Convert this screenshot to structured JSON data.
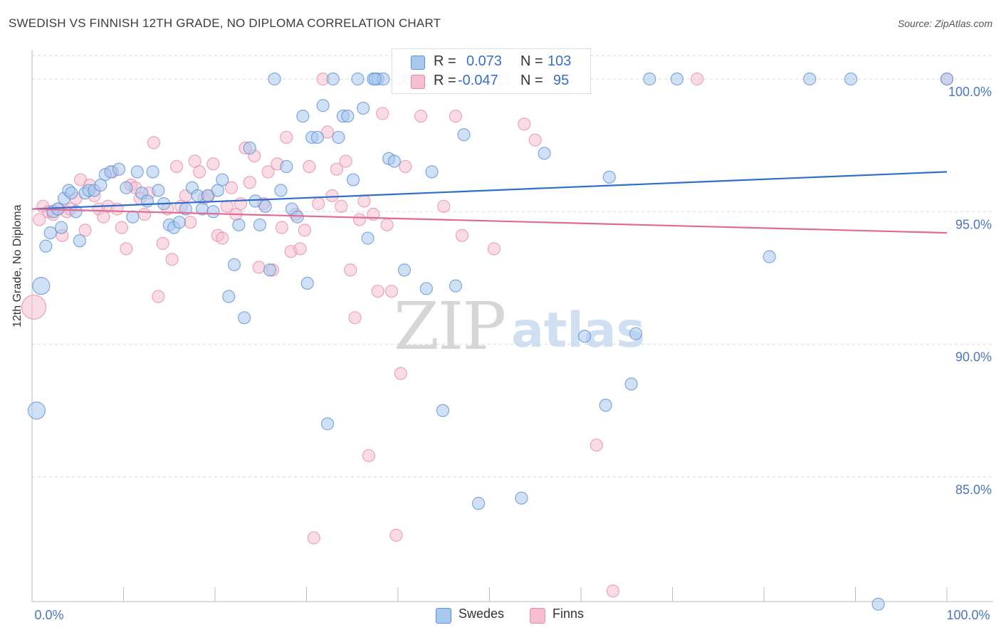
{
  "header": {
    "title": "SWEDISH VS FINNISH 12TH GRADE, NO DIPLOMA CORRELATION CHART",
    "source": "Source: ZipAtlas.com"
  },
  "watermark": {
    "zip": "ZIP",
    "atlas": "atlas"
  },
  "legend": {
    "r_label": "R =",
    "n_label": "N =",
    "swedes": {
      "r": "0.073",
      "n": "103"
    },
    "finns": {
      "r": "-0.047",
      "n": "95"
    }
  },
  "bottom_legend": {
    "swedes": "Swedes",
    "finns": "Finns"
  },
  "colors": {
    "swedes_fill": "#a9c8ef",
    "swedes_stroke": "#5b8fd6",
    "swedes_line": "#2f6fc9",
    "finns_fill": "#f6bfd0",
    "finns_stroke": "#e88aa8",
    "finns_line": "#e06b93",
    "tick_label": "#4a76c4",
    "grid": "#d8d8d8"
  },
  "chart_data": {
    "type": "scatter",
    "title": "SWEDISH VS FINNISH 12TH GRADE, NO DIPLOMA CORRELATION CHART",
    "xlabel": "",
    "ylabel": "12th Grade, No Diploma",
    "xlim": [
      0,
      100
    ],
    "ylim": [
      80.3,
      101.1
    ],
    "x_tick_labels": [
      "0.0%",
      "100.0%"
    ],
    "y_ticks": [
      {
        "value": 85,
        "label": "85.0%"
      },
      {
        "value": 90,
        "label": "90.0%"
      },
      {
        "value": 95,
        "label": "95.0%"
      },
      {
        "value": 100,
        "label": "100.0%"
      }
    ],
    "grid": "horizontal dashed",
    "legend_placement": "top-center",
    "series": [
      {
        "name": "Swedes",
        "trend": {
          "x": [
            0,
            100
          ],
          "y": [
            95.1,
            96.5
          ]
        },
        "points": [
          [
            1,
            92.2
          ],
          [
            0.5,
            87.5
          ],
          [
            1.5,
            93.7
          ],
          [
            2,
            94.2
          ],
          [
            2.3,
            95.0
          ],
          [
            2.8,
            95.1
          ],
          [
            3.2,
            94.4
          ],
          [
            3.5,
            95.5
          ],
          [
            4,
            95.8
          ],
          [
            4.3,
            95.7
          ],
          [
            4.8,
            95.0
          ],
          [
            5.2,
            93.9
          ],
          [
            5.8,
            95.7
          ],
          [
            6.2,
            95.8
          ],
          [
            6.8,
            95.8
          ],
          [
            7.5,
            96.0
          ],
          [
            8,
            96.4
          ],
          [
            8.6,
            96.5
          ],
          [
            9.5,
            96.6
          ],
          [
            10.3,
            95.9
          ],
          [
            11,
            94.8
          ],
          [
            11.5,
            96.5
          ],
          [
            12,
            95.7
          ],
          [
            12.6,
            95.4
          ],
          [
            13.2,
            96.5
          ],
          [
            13.8,
            95.8
          ],
          [
            14.4,
            95.3
          ],
          [
            15,
            94.5
          ],
          [
            15.5,
            94.4
          ],
          [
            16.1,
            94.6
          ],
          [
            16.8,
            95.1
          ],
          [
            17.5,
            95.9
          ],
          [
            18.1,
            95.6
          ],
          [
            18.6,
            95.1
          ],
          [
            19.2,
            95.6
          ],
          [
            19.8,
            95.0
          ],
          [
            20.3,
            95.8
          ],
          [
            20.8,
            96.2
          ],
          [
            21.5,
            91.8
          ],
          [
            22.1,
            93.0
          ],
          [
            22.6,
            94.5
          ],
          [
            23.2,
            91.0
          ],
          [
            23.8,
            97.4
          ],
          [
            24.4,
            95.4
          ],
          [
            24.9,
            94.5
          ],
          [
            25.5,
            95.2
          ],
          [
            26,
            92.8
          ],
          [
            26.5,
            100.0
          ],
          [
            27.2,
            95.8
          ],
          [
            27.8,
            96.7
          ],
          [
            28.4,
            95.1
          ],
          [
            29,
            94.8
          ],
          [
            29.6,
            98.6
          ],
          [
            30.1,
            92.3
          ],
          [
            30.6,
            97.8
          ],
          [
            31.2,
            97.8
          ],
          [
            31.8,
            99.0
          ],
          [
            32.3,
            87.0
          ],
          [
            32.9,
            100.0
          ],
          [
            33.5,
            97.8
          ],
          [
            34,
            98.6
          ],
          [
            34.5,
            98.6
          ],
          [
            35.1,
            96.2
          ],
          [
            35.6,
            100.0
          ],
          [
            36.2,
            98.9
          ],
          [
            36.7,
            94.0
          ],
          [
            37.3,
            100.0
          ],
          [
            37.8,
            100.0
          ],
          [
            38.4,
            100.0
          ],
          [
            39,
            97.0
          ],
          [
            39.6,
            96.9
          ],
          [
            40.2,
            100.0
          ],
          [
            40.7,
            92.8
          ],
          [
            41.3,
            100.0
          ],
          [
            41.9,
            100.0
          ],
          [
            42.5,
            100.0
          ],
          [
            43.1,
            92.1
          ],
          [
            43.7,
            96.5
          ],
          [
            44.3,
            100.0
          ],
          [
            44.9,
            87.5
          ],
          [
            45.5,
            100.0
          ],
          [
            46.3,
            92.2
          ],
          [
            47.2,
            97.9
          ],
          [
            48,
            100.0
          ],
          [
            48.8,
            84.0
          ],
          [
            50,
            100.0
          ],
          [
            51.5,
            100.0
          ],
          [
            53.5,
            84.2
          ],
          [
            56,
            97.2
          ],
          [
            58.5,
            100.0
          ],
          [
            60.4,
            90.3
          ],
          [
            62.7,
            87.7
          ],
          [
            63.1,
            96.3
          ],
          [
            65.5,
            88.5
          ],
          [
            66,
            90.4
          ],
          [
            67.5,
            100.0
          ],
          [
            70.5,
            100.0
          ],
          [
            80.6,
            93.3
          ],
          [
            85,
            100.0
          ],
          [
            89.5,
            100.0
          ],
          [
            92.5,
            80.2
          ],
          [
            100,
            100.0
          ],
          [
            37.5,
            100.0
          ]
        ]
      },
      {
        "name": "Finns",
        "trend": {
          "x": [
            0,
            100
          ],
          "y": [
            95.1,
            94.2
          ]
        },
        "points": [
          [
            0.2,
            91.4
          ],
          [
            0.8,
            94.7
          ],
          [
            1.2,
            95.2
          ],
          [
            1.8,
            95.0
          ],
          [
            2.3,
            94.9
          ],
          [
            2.9,
            95.1
          ],
          [
            3.3,
            94.1
          ],
          [
            3.8,
            95.0
          ],
          [
            4.2,
            95.1
          ],
          [
            4.8,
            95.5
          ],
          [
            5.3,
            96.2
          ],
          [
            5.8,
            94.3
          ],
          [
            6.3,
            96.0
          ],
          [
            6.8,
            95.6
          ],
          [
            7.3,
            95.1
          ],
          [
            7.8,
            94.8
          ],
          [
            8.3,
            95.2
          ],
          [
            8.8,
            96.5
          ],
          [
            9.3,
            95.1
          ],
          [
            9.8,
            94.4
          ],
          [
            10.3,
            93.6
          ],
          [
            10.8,
            96.0
          ],
          [
            11.3,
            95.9
          ],
          [
            11.8,
            95.5
          ],
          [
            12.3,
            94.9
          ],
          [
            12.8,
            95.7
          ],
          [
            13.3,
            97.6
          ],
          [
            13.8,
            91.8
          ],
          [
            14.3,
            93.8
          ],
          [
            14.8,
            95.1
          ],
          [
            15.3,
            93.2
          ],
          [
            15.8,
            96.7
          ],
          [
            16.3,
            95.2
          ],
          [
            16.8,
            95.6
          ],
          [
            17.3,
            94.6
          ],
          [
            17.8,
            96.9
          ],
          [
            18.3,
            96.5
          ],
          [
            18.8,
            95.5
          ],
          [
            19.3,
            95.6
          ],
          [
            19.8,
            96.8
          ],
          [
            20.3,
            94.1
          ],
          [
            20.8,
            94.0
          ],
          [
            21.3,
            95.2
          ],
          [
            21.8,
            95.9
          ],
          [
            22.3,
            94.9
          ],
          [
            22.8,
            95.3
          ],
          [
            23.3,
            97.4
          ],
          [
            23.8,
            96.1
          ],
          [
            24.3,
            97.1
          ],
          [
            24.8,
            92.9
          ],
          [
            25.3,
            95.3
          ],
          [
            25.8,
            96.5
          ],
          [
            26.3,
            92.8
          ],
          [
            26.8,
            96.8
          ],
          [
            27.3,
            94.4
          ],
          [
            27.8,
            97.8
          ],
          [
            28.3,
            93.5
          ],
          [
            28.8,
            94.9
          ],
          [
            29.3,
            93.6
          ],
          [
            29.8,
            94.3
          ],
          [
            30.3,
            96.7
          ],
          [
            30.8,
            82.7
          ],
          [
            31.3,
            95.3
          ],
          [
            31.8,
            100.0
          ],
          [
            32.3,
            98.0
          ],
          [
            32.8,
            95.6
          ],
          [
            33.3,
            96.6
          ],
          [
            33.8,
            95.2
          ],
          [
            34.3,
            96.9
          ],
          [
            34.8,
            92.8
          ],
          [
            35.3,
            91.0
          ],
          [
            35.8,
            94.7
          ],
          [
            36.3,
            95.4
          ],
          [
            36.8,
            85.8
          ],
          [
            37.3,
            94.9
          ],
          [
            37.8,
            92.0
          ],
          [
            38.3,
            98.7
          ],
          [
            38.8,
            94.5
          ],
          [
            39.3,
            92.0
          ],
          [
            39.8,
            82.8
          ],
          [
            40.3,
            88.9
          ],
          [
            40.8,
            96.7
          ],
          [
            41.3,
            100.0
          ],
          [
            42.5,
            98.6
          ],
          [
            45,
            95.2
          ],
          [
            46.3,
            98.6
          ],
          [
            47,
            94.1
          ],
          [
            50.5,
            93.6
          ],
          [
            53.8,
            98.3
          ],
          [
            55,
            97.7
          ],
          [
            58,
            100.0
          ],
          [
            61.7,
            86.2
          ],
          [
            63.5,
            80.7
          ],
          [
            72.7,
            100.0
          ],
          [
            100,
            100.0
          ]
        ]
      }
    ]
  }
}
